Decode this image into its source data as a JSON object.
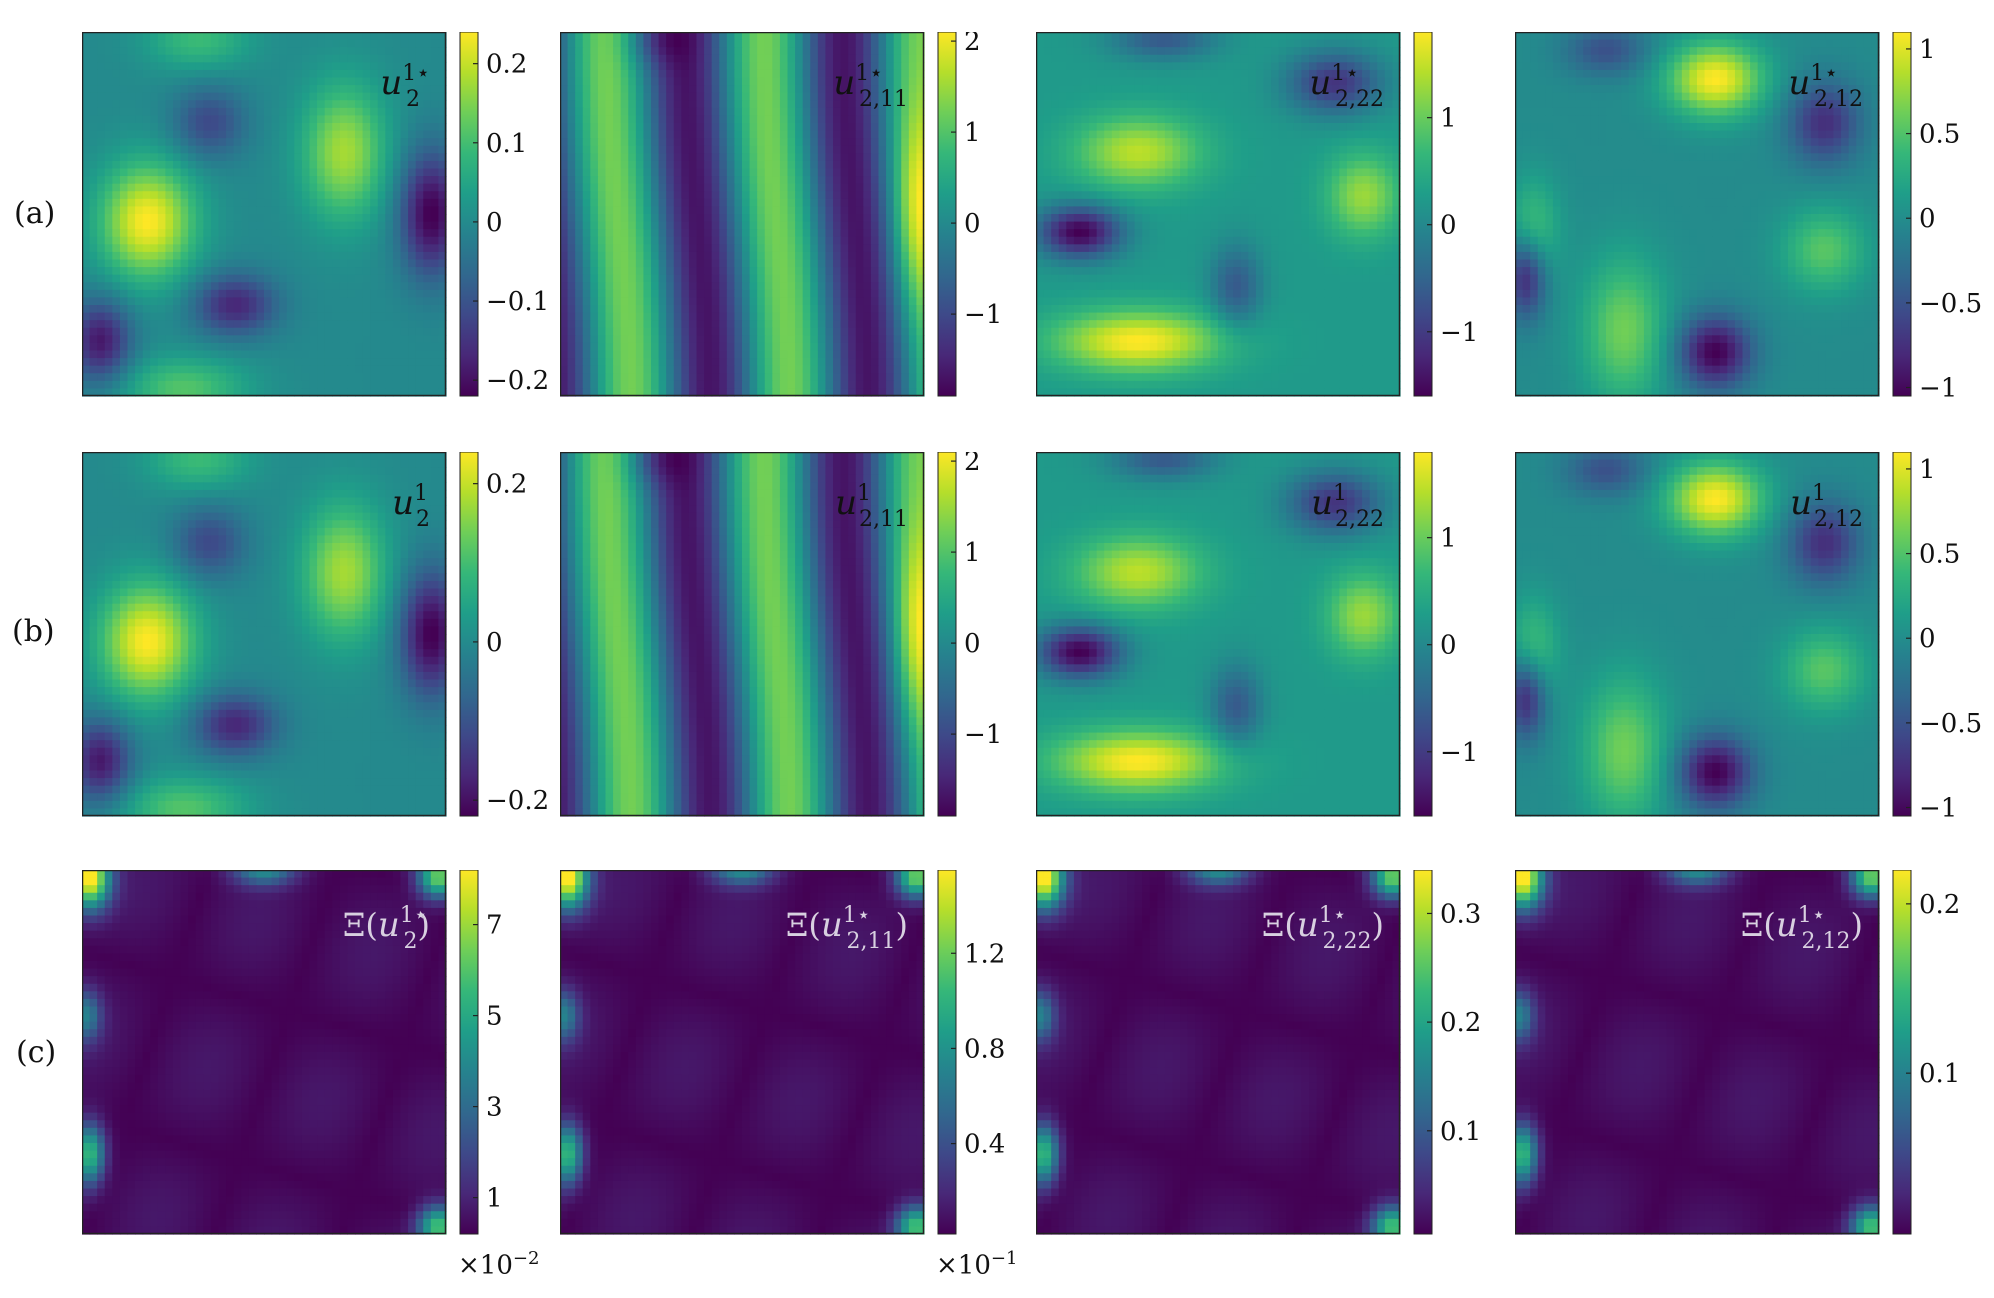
{
  "rows": [
    {
      "label": "(a)"
    },
    {
      "label": "(b)"
    },
    {
      "label": "(c)"
    }
  ],
  "colormap": [
    "#440154",
    "#482878",
    "#3e4989",
    "#31688e",
    "#26828e",
    "#1f9e89",
    "#35b779",
    "#6ece58",
    "#b5de2b",
    "#fde725"
  ],
  "chart_data": [
    {
      "type": "heatmap",
      "row": 0,
      "col": 0,
      "title": "u_2^{1*}",
      "field": "u",
      "clim": [
        -0.22,
        0.24
      ],
      "colorbar_ticks": [
        "0.2",
        "0.1",
        "0",
        "−0.1",
        "−0.2"
      ],
      "colorbar_tick_values": [
        0.2,
        0.1,
        0,
        -0.1,
        -0.2
      ]
    },
    {
      "type": "heatmap",
      "row": 0,
      "col": 1,
      "title": "u_{2,11}^{1*}",
      "field": "u11",
      "clim": [
        -1.9,
        2.1
      ],
      "colorbar_ticks": [
        "2",
        "1",
        "0",
        "−1"
      ],
      "colorbar_tick_values": [
        2,
        1,
        0,
        -1
      ]
    },
    {
      "type": "heatmap",
      "row": 0,
      "col": 2,
      "title": "u_{2,22}^{1*}",
      "field": "u22",
      "clim": [
        -1.6,
        1.8
      ],
      "colorbar_ticks": [
        "1",
        "0",
        "−1"
      ],
      "colorbar_tick_values": [
        1,
        0,
        -1
      ]
    },
    {
      "type": "heatmap",
      "row": 0,
      "col": 3,
      "title": "u_{2,12}^{1*}",
      "field": "u12",
      "clim": [
        -1.05,
        1.1
      ],
      "colorbar_ticks": [
        "1",
        "0.5",
        "0",
        "−0.5",
        "−1"
      ],
      "colorbar_tick_values": [
        1,
        0.5,
        0,
        -0.5,
        -1
      ]
    },
    {
      "type": "heatmap",
      "row": 1,
      "col": 0,
      "title": "u_2^{1}",
      "field": "u",
      "clim": [
        -0.22,
        0.24
      ],
      "colorbar_ticks": [
        "0.2",
        "0",
        "−0.2"
      ],
      "colorbar_tick_values": [
        0.2,
        0,
        -0.2
      ]
    },
    {
      "type": "heatmap",
      "row": 1,
      "col": 1,
      "title": "u_{2,11}^{1}",
      "field": "u11",
      "clim": [
        -1.9,
        2.1
      ],
      "colorbar_ticks": [
        "2",
        "1",
        "0",
        "−1"
      ],
      "colorbar_tick_values": [
        2,
        1,
        0,
        -1
      ]
    },
    {
      "type": "heatmap",
      "row": 1,
      "col": 2,
      "title": "u_{2,22}^{1}",
      "field": "u22",
      "clim": [
        -1.6,
        1.8
      ],
      "colorbar_ticks": [
        "1",
        "0",
        "−1"
      ],
      "colorbar_tick_values": [
        1,
        0,
        -1
      ]
    },
    {
      "type": "heatmap",
      "row": 1,
      "col": 3,
      "title": "u_{2,12}^{1}",
      "field": "u12",
      "clim": [
        -1.05,
        1.1
      ],
      "colorbar_ticks": [
        "1",
        "0.5",
        "0",
        "−0.5",
        "−1"
      ],
      "colorbar_tick_values": [
        1,
        0.5,
        0,
        -0.5,
        -1
      ]
    },
    {
      "type": "heatmap",
      "row": 2,
      "col": 0,
      "title": "Ξ(u_2^{1*})",
      "field": "err",
      "clim": [
        0.2,
        8.2
      ],
      "colorbar_ticks": [
        "7",
        "5",
        "3",
        "1"
      ],
      "colorbar_tick_values": [
        7,
        5,
        3,
        1
      ],
      "multiplier": "×10",
      "multiplier_exp": "−2"
    },
    {
      "type": "heatmap",
      "row": 2,
      "col": 1,
      "title": "Ξ(u_{2,11}^{1*})",
      "field": "err",
      "clim": [
        0.02,
        1.55
      ],
      "colorbar_ticks": [
        "1.2",
        "0.8",
        "0.4"
      ],
      "colorbar_tick_values": [
        1.2,
        0.8,
        0.4
      ],
      "multiplier": "×10",
      "multiplier_exp": "−1"
    },
    {
      "type": "heatmap",
      "row": 2,
      "col": 2,
      "title": "Ξ(u_{2,22}^{1*})",
      "field": "err",
      "clim": [
        0.005,
        0.34
      ],
      "colorbar_ticks": [
        "0.3",
        "0.2",
        "0.1"
      ],
      "colorbar_tick_values": [
        0.3,
        0.2,
        0.1
      ]
    },
    {
      "type": "heatmap",
      "row": 2,
      "col": 3,
      "title": "Ξ(u_{2,12}^{1*})",
      "field": "err",
      "clim": [
        0.005,
        0.22
      ],
      "colorbar_ticks": [
        "0.2",
        "0.1"
      ],
      "colorbar_tick_values": [
        0.2,
        0.1
      ]
    }
  ]
}
